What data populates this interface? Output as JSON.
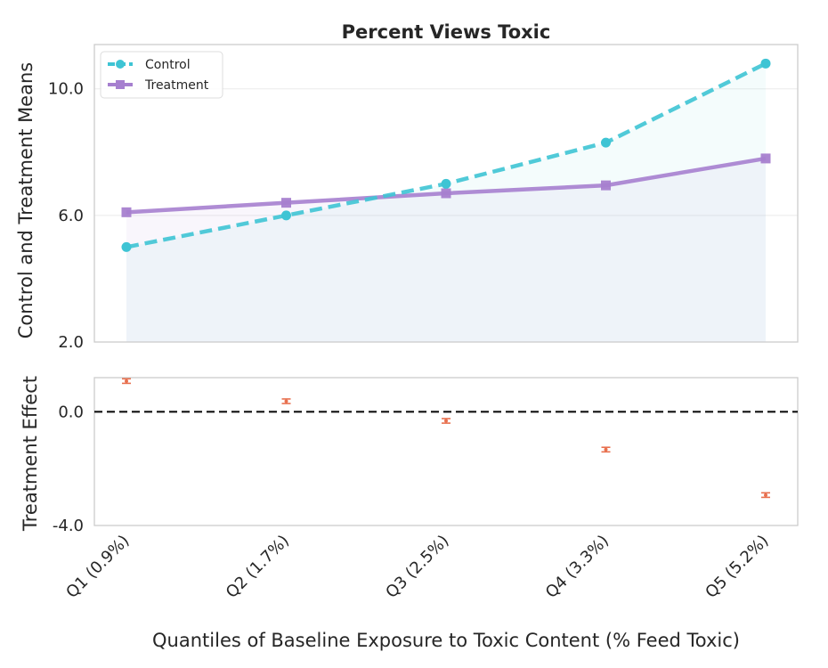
{
  "chart_data": [
    {
      "type": "line",
      "title": "Percent Views Toxic",
      "ylabel": "Control and Treatment Means",
      "xlabel": "",
      "categories": [
        "Q1 (0.9%)",
        "Q2 (1.7%)",
        "Q3 (2.5%)",
        "Q4 (3.3%)",
        "Q5 (5.2%)"
      ],
      "ylim": [
        2.0,
        11.4
      ],
      "yticks": [
        "2.0",
        "6.0",
        "10.0"
      ],
      "grid": true,
      "legend_position": "top-left",
      "series": [
        {
          "name": "Control",
          "values": [
            5.0,
            6.0,
            7.0,
            8.3,
            10.8
          ],
          "color": "#3ec4d4",
          "style": "dashed",
          "marker": "circle"
        },
        {
          "name": "Treatment",
          "values": [
            6.1,
            6.4,
            6.7,
            6.95,
            7.8
          ],
          "color": "#a67fcf",
          "style": "solid",
          "marker": "square"
        }
      ]
    },
    {
      "type": "scatter",
      "title": "",
      "ylabel": "Treatment Effect",
      "xlabel": "Quantiles of Baseline Exposure to Toxic Content (% Feed Toxic)",
      "categories": [
        "Q1 (0.9%)",
        "Q2 (1.7%)",
        "Q3 (2.5%)",
        "Q4 (3.3%)",
        "Q5 (5.2%)"
      ],
      "ylim": [
        -4.0,
        1.2
      ],
      "yticks": [
        "-4.0",
        "0.0"
      ],
      "zero_line": true,
      "grid": false,
      "series": [
        {
          "name": "",
          "values": [
            1.08,
            0.37,
            -0.32,
            -1.33,
            -2.93
          ],
          "error": [
            0.08,
            0.08,
            0.08,
            0.08,
            0.08
          ],
          "color": "#e8704f",
          "marker": "errorbar"
        }
      ]
    }
  ]
}
